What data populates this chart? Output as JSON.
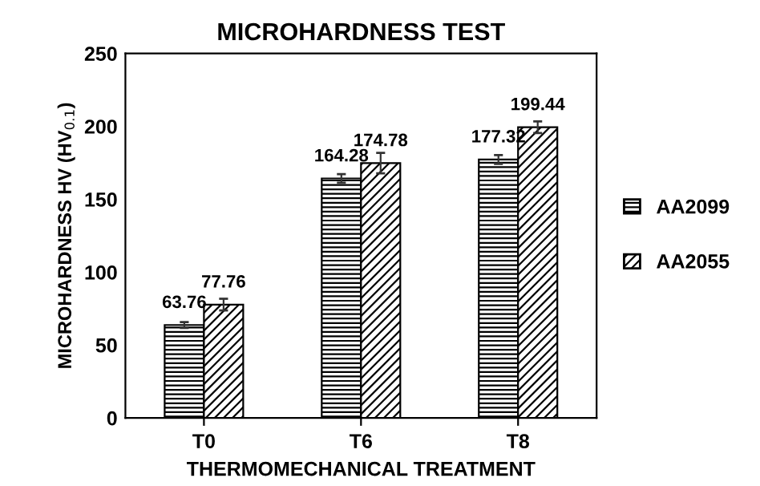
{
  "chart_data": {
    "type": "bar",
    "title": "MICROHARDNESS TEST",
    "xlabel": "THERMOMECHANICAL TREATMENT",
    "ylabel": "MICROHARDNESS HV (HV$_{0.1}$)",
    "categories": [
      "T0",
      "T6",
      "T8"
    ],
    "series": [
      {
        "name": "AA2099",
        "color": "#000000",
        "values": [
          63.76,
          164.28,
          177.32
        ],
        "errors": [
          2,
          3,
          3
        ]
      },
      {
        "name": "AA2055",
        "color": "#000000",
        "values": [
          77.76,
          174.78,
          199.44
        ],
        "errors": [
          4,
          7,
          4
        ]
      }
    ],
    "ylim": [
      0,
      250
    ],
    "yticks": [
      0,
      50,
      100,
      150,
      200,
      250
    ],
    "data_labels": true,
    "legend": "right",
    "grid": false
  }
}
